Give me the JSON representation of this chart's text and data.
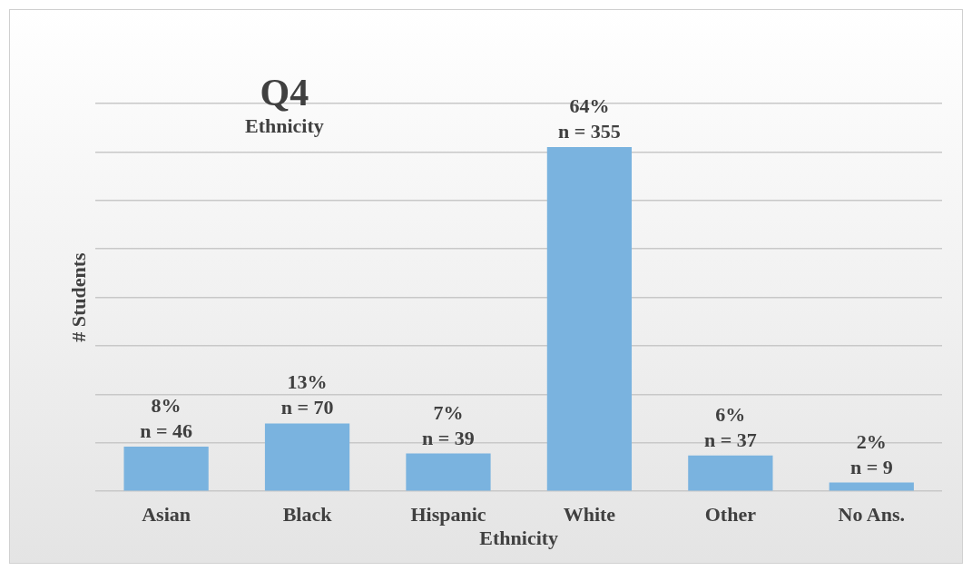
{
  "chart_data": {
    "type": "bar",
    "title": "Q4",
    "subtitle": "Ethnicity",
    "xlabel": "Ethnicity",
    "ylabel": "# Students",
    "categories": [
      "Asian",
      "Black",
      "Hispanic",
      "White",
      "Other",
      "No Ans."
    ],
    "values": [
      46,
      70,
      39,
      355,
      37,
      9
    ],
    "value_labels": [
      "8%\nn = 46",
      "13%\nn = 70",
      "7%\nn = 39",
      "64%\nn = 355",
      "6%\nn = 37",
      "2%\nn = 9"
    ],
    "color": "#7ab3df",
    "grid": "y",
    "tick_labels": "x",
    "legend": false
  }
}
